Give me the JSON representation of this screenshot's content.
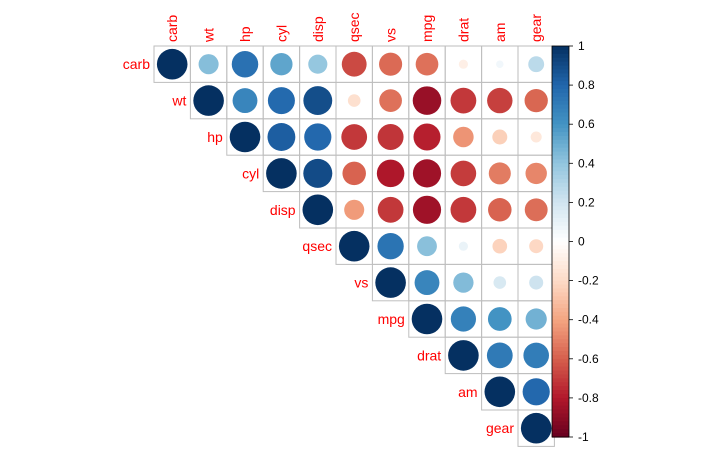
{
  "chart_data": {
    "type": "heatmap",
    "style": "correlation-plot-circles-upper-triangle",
    "variables": [
      "carb",
      "wt",
      "hp",
      "cyl",
      "disp",
      "qsec",
      "vs",
      "mpg",
      "drat",
      "am",
      "gear"
    ],
    "matrix": [
      [
        1.0,
        0.43,
        0.75,
        0.53,
        0.39,
        -0.66,
        -0.57,
        -0.55,
        -0.09,
        0.06,
        0.27
      ],
      [
        0.43,
        1.0,
        0.66,
        0.78,
        0.89,
        -0.17,
        -0.55,
        -0.87,
        -0.71,
        -0.69,
        -0.58
      ],
      [
        0.75,
        0.66,
        1.0,
        0.83,
        0.79,
        -0.71,
        -0.72,
        -0.78,
        -0.45,
        -0.24,
        -0.13
      ],
      [
        0.53,
        0.78,
        0.83,
        1.0,
        0.9,
        -0.59,
        -0.81,
        -0.85,
        -0.7,
        -0.52,
        -0.49
      ],
      [
        0.39,
        0.89,
        0.79,
        0.9,
        1.0,
        -0.43,
        -0.71,
        -0.85,
        -0.71,
        -0.59,
        -0.56
      ],
      [
        -0.66,
        -0.17,
        -0.71,
        -0.59,
        -0.43,
        1.0,
        0.74,
        0.42,
        0.09,
        -0.23,
        -0.21
      ],
      [
        -0.57,
        -0.55,
        -0.72,
        -0.81,
        -0.71,
        0.74,
        1.0,
        0.66,
        0.44,
        0.17,
        0.21
      ],
      [
        -0.55,
        -0.87,
        -0.78,
        -0.85,
        -0.85,
        0.42,
        0.66,
        1.0,
        0.68,
        0.6,
        0.48
      ],
      [
        -0.09,
        -0.71,
        -0.45,
        -0.7,
        -0.71,
        0.09,
        0.44,
        0.68,
        1.0,
        0.71,
        0.7
      ],
      [
        0.06,
        -0.69,
        -0.24,
        -0.52,
        -0.59,
        -0.23,
        0.17,
        0.6,
        0.71,
        1.0,
        0.79
      ],
      [
        0.27,
        -0.58,
        -0.13,
        -0.49,
        -0.56,
        -0.21,
        0.21,
        0.48,
        0.7,
        0.79,
        1.0
      ]
    ],
    "color_scale": {
      "range": [
        -1,
        1
      ],
      "ticks": [
        "-1",
        "-0.8",
        "-0.6",
        "-0.4",
        "-0.2",
        "0",
        "0.2",
        "0.4",
        "0.6",
        "0.8",
        "1"
      ],
      "colors": [
        "#67001F",
        "#B2182B",
        "#D6604D",
        "#F4A582",
        "#FDDBC7",
        "#FFFFFF",
        "#D1E5F0",
        "#92C5DE",
        "#4393C3",
        "#2166AC",
        "#053061"
      ]
    },
    "label_color": "#FF0000",
    "grid_color": "#BEBEBE",
    "legend_placement": "right"
  }
}
